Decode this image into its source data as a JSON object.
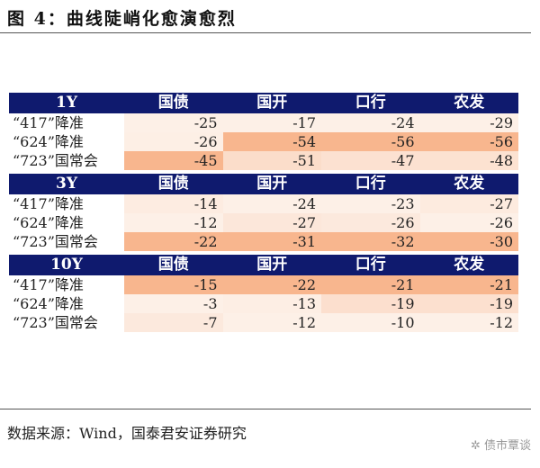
{
  "title": "图 4：曲线陡峭化愈演愈烈",
  "columns": [
    "国债",
    "国开",
    "口行",
    "农发"
  ],
  "rows": [
    "“417”降准",
    "“624”降准",
    "“723”国常会"
  ],
  "colors": {
    "header": "#0f1a6e",
    "low": "#fdf0e7",
    "high": "#f8b68e"
  },
  "blocks": [
    {
      "tenor": "1Y",
      "values": [
        [
          -25,
          -17,
          -24,
          -29
        ],
        [
          -26,
          -54,
          -56,
          -56
        ],
        [
          -45,
          -51,
          -47,
          -48
        ]
      ]
    },
    {
      "tenor": "3Y",
      "values": [
        [
          -14,
          -24,
          -23,
          -27
        ],
        [
          -12,
          -27,
          -26,
          -26
        ],
        [
          -22,
          -31,
          -32,
          -30
        ]
      ]
    },
    {
      "tenor": "10Y",
      "values": [
        [
          -15,
          -22,
          -21,
          -21
        ],
        [
          -3,
          -13,
          -19,
          -19
        ],
        [
          -7,
          -12,
          -10,
          -12
        ]
      ]
    }
  ],
  "source": "数据来源：Wind，国泰君安证券研究",
  "watermark": "债市覃谈"
}
